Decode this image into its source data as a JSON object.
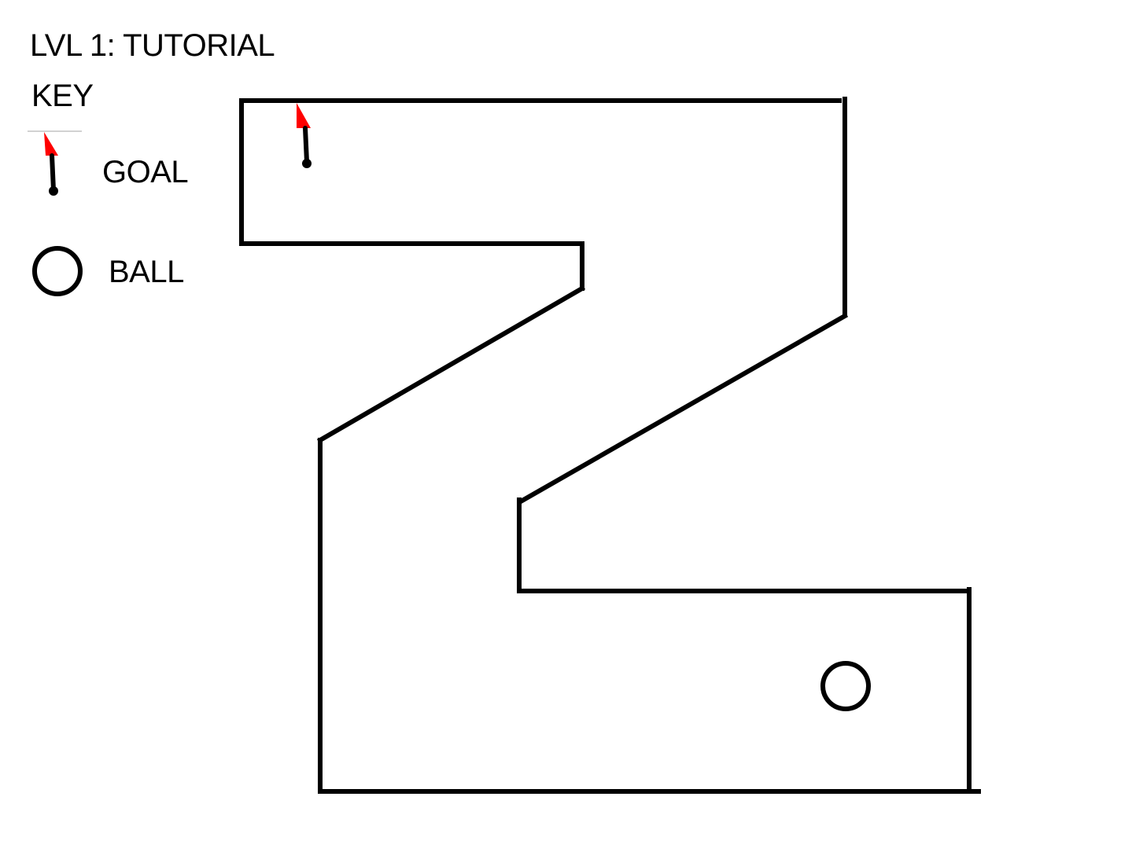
{
  "level": {
    "title": "LVL 1: TUTORIAL"
  },
  "key": {
    "heading": "KEY",
    "goal_label": "GOAL",
    "ball_label": "BALL"
  },
  "colors": {
    "wall": "#000000",
    "flag": "#ff0000",
    "background": "#ffffff"
  },
  "icons": {
    "goal": "goal-flag-icon",
    "ball": "ball-icon"
  }
}
